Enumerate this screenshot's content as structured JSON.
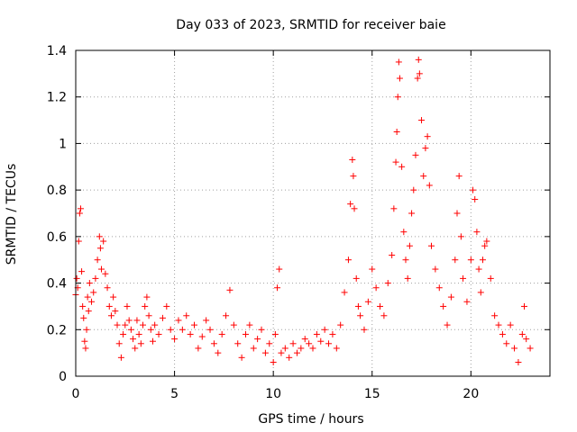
{
  "chart_data": {
    "type": "scatter",
    "title": "Day 033 of 2023, SRMTID for receiver baie",
    "xlabel": "GPS time / hours",
    "ylabel": "SRMTID / TECUs",
    "xlim": [
      0,
      24
    ],
    "ylim": [
      0,
      1.4
    ],
    "x_ticks": [
      0,
      5,
      10,
      15,
      20
    ],
    "x_tick_labels": [
      "0",
      "5",
      "10",
      "15",
      "20"
    ],
    "y_ticks": [
      0,
      0.2,
      0.4,
      0.6,
      0.8,
      1,
      1.2,
      1.4
    ],
    "y_tick_labels": [
      "0",
      "0.2",
      "0.4",
      "0.6",
      "0.8",
      "1",
      "1.2",
      "1.4"
    ],
    "grid": true,
    "marker": "+",
    "color": "#ff0000",
    "series": [
      {
        "name": "SRMTID",
        "points": [
          [
            0.0,
            0.35
          ],
          [
            0.05,
            0.42
          ],
          [
            0.1,
            0.38
          ],
          [
            0.15,
            0.58
          ],
          [
            0.2,
            0.7
          ],
          [
            0.25,
            0.72
          ],
          [
            0.3,
            0.45
          ],
          [
            0.35,
            0.3
          ],
          [
            0.4,
            0.25
          ],
          [
            0.45,
            0.15
          ],
          [
            0.5,
            0.12
          ],
          [
            0.55,
            0.2
          ],
          [
            0.6,
            0.34
          ],
          [
            0.65,
            0.28
          ],
          [
            0.7,
            0.4
          ],
          [
            0.8,
            0.32
          ],
          [
            0.9,
            0.36
          ],
          [
            1.0,
            0.42
          ],
          [
            1.1,
            0.5
          ],
          [
            1.2,
            0.6
          ],
          [
            1.25,
            0.55
          ],
          [
            1.3,
            0.46
          ],
          [
            1.4,
            0.58
          ],
          [
            1.5,
            0.44
          ],
          [
            1.6,
            0.38
          ],
          [
            1.7,
            0.3
          ],
          [
            1.8,
            0.26
          ],
          [
            1.9,
            0.34
          ],
          [
            2.0,
            0.28
          ],
          [
            2.1,
            0.22
          ],
          [
            2.2,
            0.14
          ],
          [
            2.3,
            0.08
          ],
          [
            2.4,
            0.18
          ],
          [
            2.5,
            0.22
          ],
          [
            2.6,
            0.3
          ],
          [
            2.7,
            0.24
          ],
          [
            2.8,
            0.2
          ],
          [
            2.9,
            0.16
          ],
          [
            3.0,
            0.12
          ],
          [
            3.1,
            0.24
          ],
          [
            3.2,
            0.18
          ],
          [
            3.3,
            0.14
          ],
          [
            3.4,
            0.22
          ],
          [
            3.5,
            0.3
          ],
          [
            3.6,
            0.34
          ],
          [
            3.7,
            0.26
          ],
          [
            3.8,
            0.2
          ],
          [
            3.9,
            0.15
          ],
          [
            4.0,
            0.22
          ],
          [
            4.2,
            0.18
          ],
          [
            4.4,
            0.25
          ],
          [
            4.6,
            0.3
          ],
          [
            4.8,
            0.2
          ],
          [
            5.0,
            0.16
          ],
          [
            5.2,
            0.24
          ],
          [
            5.4,
            0.2
          ],
          [
            5.6,
            0.26
          ],
          [
            5.8,
            0.18
          ],
          [
            6.0,
            0.22
          ],
          [
            6.2,
            0.12
          ],
          [
            6.4,
            0.17
          ],
          [
            6.6,
            0.24
          ],
          [
            6.8,
            0.2
          ],
          [
            7.0,
            0.14
          ],
          [
            7.2,
            0.1
          ],
          [
            7.4,
            0.18
          ],
          [
            7.6,
            0.26
          ],
          [
            7.8,
            0.37
          ],
          [
            8.0,
            0.22
          ],
          [
            8.2,
            0.14
          ],
          [
            8.4,
            0.08
          ],
          [
            8.6,
            0.18
          ],
          [
            8.8,
            0.22
          ],
          [
            9.0,
            0.12
          ],
          [
            9.2,
            0.16
          ],
          [
            9.4,
            0.2
          ],
          [
            9.6,
            0.1
          ],
          [
            9.8,
            0.14
          ],
          [
            10.0,
            0.06
          ],
          [
            10.1,
            0.18
          ],
          [
            10.2,
            0.38
          ],
          [
            10.3,
            0.46
          ],
          [
            10.4,
            0.1
          ],
          [
            10.6,
            0.12
          ],
          [
            10.8,
            0.08
          ],
          [
            11.0,
            0.14
          ],
          [
            11.2,
            0.1
          ],
          [
            11.4,
            0.12
          ],
          [
            11.6,
            0.16
          ],
          [
            11.8,
            0.14
          ],
          [
            12.0,
            0.12
          ],
          [
            12.2,
            0.18
          ],
          [
            12.4,
            0.15
          ],
          [
            12.6,
            0.2
          ],
          [
            12.8,
            0.14
          ],
          [
            13.0,
            0.18
          ],
          [
            13.2,
            0.12
          ],
          [
            13.4,
            0.22
          ],
          [
            13.6,
            0.36
          ],
          [
            13.8,
            0.5
          ],
          [
            13.9,
            0.74
          ],
          [
            14.0,
            0.93
          ],
          [
            14.05,
            0.86
          ],
          [
            14.1,
            0.72
          ],
          [
            14.2,
            0.42
          ],
          [
            14.3,
            0.3
          ],
          [
            14.4,
            0.26
          ],
          [
            14.6,
            0.2
          ],
          [
            14.8,
            0.32
          ],
          [
            15.0,
            0.46
          ],
          [
            15.2,
            0.38
          ],
          [
            15.4,
            0.3
          ],
          [
            15.6,
            0.26
          ],
          [
            15.8,
            0.4
          ],
          [
            16.0,
            0.52
          ],
          [
            16.1,
            0.72
          ],
          [
            16.2,
            0.92
          ],
          [
            16.25,
            1.05
          ],
          [
            16.3,
            1.2
          ],
          [
            16.35,
            1.35
          ],
          [
            16.4,
            1.28
          ],
          [
            16.5,
            0.9
          ],
          [
            16.6,
            0.62
          ],
          [
            16.7,
            0.5
          ],
          [
            16.8,
            0.42
          ],
          [
            16.9,
            0.56
          ],
          [
            17.0,
            0.7
          ],
          [
            17.1,
            0.8
          ],
          [
            17.2,
            0.95
          ],
          [
            17.3,
            1.28
          ],
          [
            17.35,
            1.36
          ],
          [
            17.4,
            1.3
          ],
          [
            17.5,
            1.1
          ],
          [
            17.6,
            0.86
          ],
          [
            17.7,
            0.98
          ],
          [
            17.8,
            1.03
          ],
          [
            17.9,
            0.82
          ],
          [
            18.0,
            0.56
          ],
          [
            18.2,
            0.46
          ],
          [
            18.4,
            0.38
          ],
          [
            18.6,
            0.3
          ],
          [
            18.8,
            0.22
          ],
          [
            19.0,
            0.34
          ],
          [
            19.2,
            0.5
          ],
          [
            19.3,
            0.7
          ],
          [
            19.4,
            0.86
          ],
          [
            19.5,
            0.6
          ],
          [
            19.6,
            0.42
          ],
          [
            19.8,
            0.32
          ],
          [
            20.0,
            0.5
          ],
          [
            20.1,
            0.8
          ],
          [
            20.2,
            0.76
          ],
          [
            20.3,
            0.62
          ],
          [
            20.4,
            0.46
          ],
          [
            20.5,
            0.36
          ],
          [
            20.6,
            0.5
          ],
          [
            20.7,
            0.56
          ],
          [
            20.8,
            0.58
          ],
          [
            21.0,
            0.42
          ],
          [
            21.2,
            0.26
          ],
          [
            21.4,
            0.22
          ],
          [
            21.6,
            0.18
          ],
          [
            21.8,
            0.14
          ],
          [
            22.0,
            0.22
          ],
          [
            22.2,
            0.12
          ],
          [
            22.4,
            0.06
          ],
          [
            22.6,
            0.18
          ],
          [
            22.7,
            0.3
          ],
          [
            22.8,
            0.16
          ],
          [
            23.0,
            0.12
          ]
        ]
      }
    ]
  }
}
